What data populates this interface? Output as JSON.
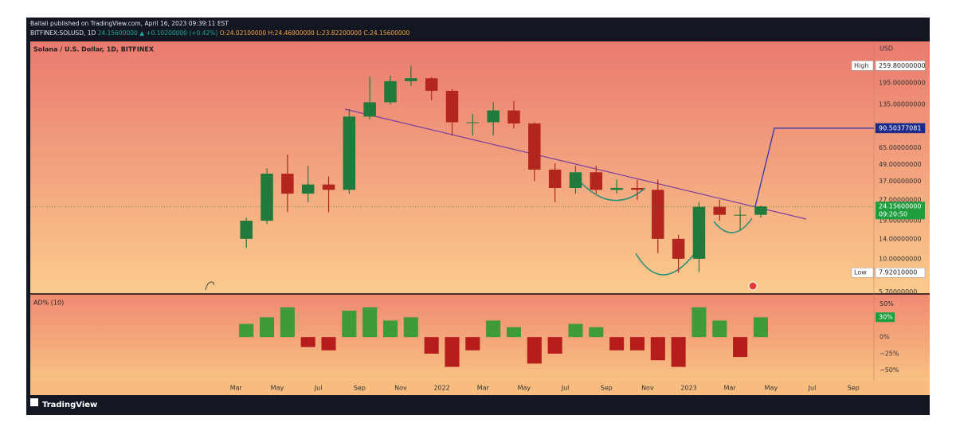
{
  "header": {
    "published": "Ballali published on TradingView.com, April 16, 2023 09:39:11 EST",
    "symbol": "BITFINEX:SOLUSD, 1D",
    "price": "24.15600000",
    "change": "▲ +0.10200000 (+0.42%)",
    "ohlc": [
      "O:24.02100000",
      "H:24.46900000",
      "L:23.82200000",
      "C:24.15600000"
    ]
  },
  "footer": {
    "brand": "TradingView"
  },
  "chart_data": [
    {
      "type": "candlestick",
      "title": "Solana / U.S. Dollar, 1D, BITFINEX",
      "y_axis_label": "USD",
      "log_scale": true,
      "up_color": "#1f7a3c",
      "down_color": "#b3261e",
      "x": [
        "2021-03",
        "2021-04",
        "2021-05",
        "2021-06",
        "2021-07",
        "2021-08",
        "2021-09",
        "2021-10",
        "2021-11",
        "2021-12",
        "2022-01",
        "2022-02",
        "2022-03",
        "2022-04",
        "2022-05",
        "2022-06",
        "2022-07",
        "2022-08",
        "2022-09",
        "2022-10",
        "2022-11",
        "2022-12",
        "2023-01",
        "2023-02",
        "2023-03",
        "2023-04"
      ],
      "open": [
        14,
        19,
        42,
        30,
        35,
        32,
        110,
        140,
        200,
        210,
        170,
        100,
        100,
        122,
        98,
        45,
        33,
        43,
        32,
        33,
        32,
        14,
        10,
        24,
        21,
        21
      ],
      "high": [
        20,
        46,
        58,
        48,
        40,
        125,
        215,
        220,
        259.8,
        215,
        175,
        115,
        140,
        143,
        100,
        50,
        48,
        48,
        38,
        38,
        38,
        15,
        26,
        27,
        24,
        24.5
      ],
      "low": [
        12,
        18,
        22,
        26,
        22,
        30,
        105,
        135,
        185,
        145,
        80,
        80,
        80,
        90,
        37,
        26,
        30,
        30,
        30,
        27,
        11,
        7.9201,
        8,
        19,
        16,
        20
      ],
      "close": [
        19,
        42,
        30,
        35,
        32,
        110,
        140,
        200,
        210,
        170,
        100,
        100,
        122,
        98,
        45,
        33,
        43,
        32,
        33,
        32,
        14,
        10,
        24,
        21,
        21,
        24.156
      ],
      "xlim": [
        "2020-05",
        "2023-10"
      ],
      "xticks": [
        {
          "value": "2021-03",
          "label": "Mar"
        },
        {
          "value": "2021-05",
          "label": "May"
        },
        {
          "value": "2021-07",
          "label": "Jul"
        },
        {
          "value": "2021-09",
          "label": "Sep"
        },
        {
          "value": "2021-11",
          "label": "Nov"
        },
        {
          "value": "2022-01",
          "label": "2022"
        },
        {
          "value": "2022-03",
          "label": "Mar"
        },
        {
          "value": "2022-05",
          "label": "May"
        },
        {
          "value": "2022-07",
          "label": "Jul"
        },
        {
          "value": "2022-09",
          "label": "Sep"
        },
        {
          "value": "2022-11",
          "label": "Nov"
        },
        {
          "value": "2023-01",
          "label": "2023"
        },
        {
          "value": "2023-03",
          "label": "Mar"
        },
        {
          "value": "2023-05",
          "label": "May"
        },
        {
          "value": "2023-07",
          "label": "Jul"
        },
        {
          "value": "2023-09",
          "label": "Sep"
        }
      ],
      "ylim": [
        5.6,
        391
      ],
      "yticks": [
        {
          "value": 5.7,
          "label": "5.70000000"
        },
        {
          "value": 10,
          "label": "10.00000000"
        },
        {
          "value": 14,
          "label": "14.00000000"
        },
        {
          "value": 19,
          "label": "19.00000000"
        },
        {
          "value": 27,
          "label": "27.00000000"
        },
        {
          "value": 37,
          "label": "37.00000000"
        },
        {
          "value": 49,
          "label": "49.00000000"
        },
        {
          "value": 65,
          "label": "65.00000000"
        },
        {
          "value": 135,
          "label": "135.00000000"
        },
        {
          "value": 195,
          "label": "195.00000000"
        }
      ],
      "high_marker": {
        "name": "High",
        "value": 259.8,
        "label": "259.80000000"
      },
      "low_marker": {
        "name": "Low",
        "value": 7.9201,
        "label": "7.92010000"
      },
      "target": {
        "value": 90.50377081,
        "label": "90.50377081"
      },
      "last_price": {
        "value": 24.156,
        "label": "24.15600000",
        "countdown": "09:20:50"
      }
    },
    {
      "type": "bar",
      "title": "AD% (10)",
      "up_color": "#3f9b3a",
      "down_color": "#b71c1c",
      "x": [
        "2021-03",
        "2021-04",
        "2021-05",
        "2021-06",
        "2021-07",
        "2021-08",
        "2021-09",
        "2021-10",
        "2021-11",
        "2021-12",
        "2022-01",
        "2022-02",
        "2022-03",
        "2022-04",
        "2022-05",
        "2022-06",
        "2022-07",
        "2022-08",
        "2022-09",
        "2022-10",
        "2022-11",
        "2022-12",
        "2023-01",
        "2023-02",
        "2023-03",
        "2023-04"
      ],
      "values": [
        20,
        30,
        45,
        -15,
        -20,
        40,
        45,
        25,
        30,
        -25,
        -45,
        -20,
        25,
        15,
        -40,
        -25,
        20,
        15,
        -20,
        -20,
        -35,
        -45,
        45,
        25,
        -30,
        30
      ],
      "ylim": [
        -66,
        64
      ],
      "yticks": [
        {
          "value": 50,
          "label": "50%"
        },
        {
          "value": 0,
          "label": "0%"
        },
        {
          "value": -25,
          "label": "−25%"
        },
        {
          "value": -50,
          "label": "−50%"
        }
      ],
      "last_value": {
        "value": 30,
        "label": "30%"
      }
    }
  ]
}
